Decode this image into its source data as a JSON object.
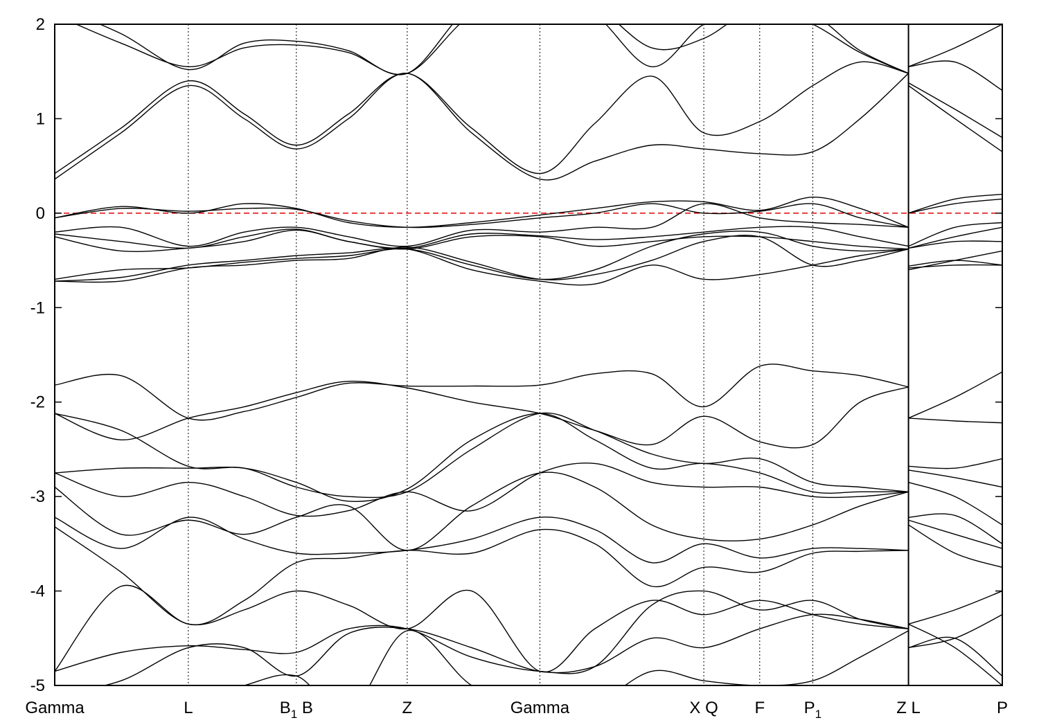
{
  "chart_data": {
    "type": "line",
    "title": "",
    "xlabel": "",
    "ylabel": "",
    "xlim": [
      0,
      10
    ],
    "ylim": [
      -5,
      2
    ],
    "yticks": [
      2,
      1,
      0,
      -1,
      -2,
      -3,
      -4,
      -5
    ],
    "ytick_labels": [
      "2",
      "1",
      "0",
      "-1",
      "-2",
      "-3",
      "-4",
      "-5"
    ],
    "grid": "vertical dotted lines at high-symmetry points",
    "fermi_level": {
      "value": 0,
      "color": "#e00000",
      "style": "dashed"
    },
    "band_color": "#000000",
    "kpoints": [
      {
        "k": 0,
        "label": "Gamma",
        "sub": ""
      },
      {
        "k": 1.41,
        "label": "L",
        "sub": ""
      },
      {
        "k": 2.55,
        "label": "B",
        "sub": "1",
        "after": " B"
      },
      {
        "k": 3.72,
        "label": "Z",
        "sub": ""
      },
      {
        "k": 5.12,
        "label": "Gamma",
        "sub": ""
      },
      {
        "k": 6.85,
        "label": "X Q",
        "sub": ""
      },
      {
        "k": 7.44,
        "label": "F",
        "sub": ""
      },
      {
        "k": 8.0,
        "label": "P",
        "sub": "1"
      },
      {
        "k": 9.01,
        "label": "Z L",
        "sub": ""
      },
      {
        "k": 10,
        "label": "P",
        "sub": ""
      }
    ],
    "segments": [
      {
        "k": [
          0,
          0.7,
          1.41,
          2.0,
          2.55,
          3.1,
          3.72,
          4.4,
          5.12,
          5.7,
          6.3,
          6.85,
          7.44,
          8.0,
          8.5,
          9.01
        ],
        "bands": [
          [
            0.36,
            0.85,
            1.35,
            1.0,
            0.68,
            1.0,
            1.48,
            0.85,
            0.36,
            0.55,
            0.72,
            0.68,
            0.63,
            0.65,
            1.0,
            1.48
          ],
          [
            0.42,
            0.9,
            1.4,
            1.05,
            0.72,
            1.05,
            1.48,
            0.9,
            0.42,
            0.95,
            1.45,
            0.85,
            0.97,
            1.35,
            1.6,
            1.48
          ],
          [
            2.1,
            1.8,
            1.55,
            1.75,
            1.78,
            1.7,
            1.48,
            2.1,
            2.3,
            2.1,
            1.55,
            2.0,
            2.2,
            2.0,
            1.7,
            1.48
          ],
          [
            2.2,
            1.9,
            1.52,
            1.8,
            1.82,
            1.72,
            1.48,
            2.2,
            2.4,
            2.2,
            1.75,
            1.85,
            2.2,
            2.1,
            1.72,
            1.48
          ],
          [
            -0.05,
            0.07,
            0.0,
            0.1,
            0.05,
            -0.1,
            -0.15,
            -0.1,
            -0.02,
            0.05,
            0.12,
            0.12,
            0.03,
            0.17,
            0.05,
            -0.15
          ],
          [
            -0.05,
            0.05,
            0.02,
            0.05,
            0.04,
            -0.08,
            -0.15,
            -0.12,
            -0.05,
            0.0,
            0.1,
            0.0,
            0.02,
            0.1,
            -0.05,
            -0.15
          ],
          [
            -0.2,
            -0.15,
            -0.35,
            -0.2,
            -0.15,
            -0.25,
            -0.35,
            -0.18,
            -0.2,
            -0.15,
            -0.15,
            0.1,
            -0.05,
            -0.1,
            -0.12,
            -0.15
          ],
          [
            -0.22,
            -0.3,
            -0.37,
            -0.25,
            -0.17,
            -0.3,
            -0.37,
            -0.22,
            -0.24,
            -0.28,
            -0.25,
            -0.2,
            -0.15,
            -0.15,
            -0.25,
            -0.35
          ],
          [
            -0.25,
            -0.4,
            -0.37,
            -0.3,
            -0.18,
            -0.3,
            -0.38,
            -0.25,
            -0.25,
            -0.35,
            -0.3,
            -0.25,
            -0.25,
            -0.3,
            -0.35,
            -0.38
          ],
          [
            -0.7,
            -0.6,
            -0.58,
            -0.52,
            -0.48,
            -0.45,
            -0.38,
            -0.55,
            -0.7,
            -0.6,
            -0.35,
            -0.22,
            -0.2,
            -0.35,
            -0.4,
            -0.38
          ],
          [
            -0.72,
            -0.68,
            -0.55,
            -0.5,
            -0.45,
            -0.42,
            -0.38,
            -0.6,
            -0.72,
            -0.75,
            -0.55,
            -0.7,
            -0.65,
            -0.55,
            -0.45,
            -0.38
          ],
          [
            -0.72,
            -0.72,
            -0.58,
            -0.55,
            -0.5,
            -0.48,
            -0.36,
            -0.52,
            -0.7,
            -0.65,
            -0.5,
            -0.3,
            -0.25,
            -0.55,
            -0.5,
            -0.38
          ],
          [
            -1.82,
            -1.72,
            -2.17,
            -2.1,
            -1.95,
            -1.8,
            -1.83,
            -1.83,
            -1.82,
            -1.7,
            -1.7,
            -2.05,
            -1.62,
            -1.67,
            -1.72,
            -1.84
          ],
          [
            -2.12,
            -2.4,
            -2.17,
            -2.05,
            -1.9,
            -1.78,
            -1.85,
            -2.0,
            -2.12,
            -2.3,
            -2.45,
            -2.15,
            -2.42,
            -2.45,
            -2.0,
            -1.84
          ],
          [
            -2.12,
            -2.3,
            -2.68,
            -2.7,
            -2.9,
            -3.0,
            -2.95,
            -2.5,
            -2.12,
            -2.3,
            -2.55,
            -2.65,
            -2.6,
            -2.85,
            -2.9,
            -2.95
          ],
          [
            -2.75,
            -2.7,
            -2.7,
            -2.7,
            -2.85,
            -3.05,
            -2.92,
            -2.4,
            -2.12,
            -2.4,
            -2.7,
            -2.65,
            -2.75,
            -2.95,
            -2.95,
            -2.95
          ],
          [
            -2.75,
            -3.0,
            -2.85,
            -3.0,
            -3.2,
            -3.15,
            -2.95,
            -3.15,
            -2.75,
            -2.65,
            -2.85,
            -2.9,
            -2.9,
            -3.0,
            -3.0,
            -2.95
          ],
          [
            -2.9,
            -3.4,
            -3.25,
            -3.4,
            -3.22,
            -3.1,
            -3.57,
            -3.1,
            -2.75,
            -2.9,
            -3.3,
            -3.45,
            -3.45,
            -3.3,
            -3.1,
            -2.95
          ],
          [
            -3.22,
            -3.55,
            -3.22,
            -3.45,
            -3.6,
            -3.6,
            -3.57,
            -3.45,
            -3.22,
            -3.35,
            -3.7,
            -3.5,
            -3.65,
            -3.55,
            -3.55,
            -3.57
          ],
          [
            -3.32,
            -3.8,
            -4.35,
            -4.1,
            -3.7,
            -3.65,
            -3.57,
            -3.6,
            -3.35,
            -3.5,
            -3.95,
            -3.75,
            -3.8,
            -3.6,
            -3.58,
            -3.57
          ],
          [
            -4.85,
            -3.95,
            -4.35,
            -4.2,
            -4.0,
            -4.15,
            -4.4,
            -4.0,
            -4.85,
            -4.4,
            -4.1,
            -4.25,
            -4.1,
            -4.25,
            -4.35,
            -4.4
          ],
          [
            -4.85,
            -4.65,
            -4.58,
            -4.62,
            -4.65,
            -4.4,
            -4.4,
            -4.7,
            -4.85,
            -4.8,
            -4.15,
            -4.0,
            -4.2,
            -4.1,
            -4.3,
            -4.4
          ],
          [
            -5.1,
            -4.95,
            -4.6,
            -4.6,
            -4.9,
            -4.45,
            -4.4,
            -4.6,
            -4.85,
            -4.8,
            -4.5,
            -4.6,
            -4.4,
            -4.25,
            -4.3,
            -4.4
          ],
          [
            -5.2,
            -5.05,
            -5.2,
            -5.0,
            -4.9,
            -5.3,
            -4.42,
            -5.0,
            -5.3,
            -5.2,
            -4.85,
            -4.95,
            -5.0,
            -4.95,
            -4.7,
            -4.42
          ]
        ]
      },
      {
        "k": [
          9.01,
          9.5,
          10
        ],
        "bands": [
          [
            1.35,
            1.0,
            0.65
          ],
          [
            1.38,
            1.1,
            0.8
          ],
          [
            1.55,
            1.6,
            1.3
          ],
          [
            1.55,
            1.75,
            2.0
          ],
          [
            0.0,
            0.15,
            0.2
          ],
          [
            0.0,
            0.1,
            0.15
          ],
          [
            -0.35,
            -0.15,
            -0.1
          ],
          [
            -0.37,
            -0.25,
            -0.15
          ],
          [
            -0.37,
            -0.3,
            -0.3
          ],
          [
            -0.56,
            -0.5,
            -0.55
          ],
          [
            -0.6,
            -0.5,
            -0.4
          ],
          [
            -0.58,
            -0.55,
            -0.55
          ],
          [
            -2.17,
            -1.95,
            -1.68
          ],
          [
            -2.17,
            -2.2,
            -2.22
          ],
          [
            -2.68,
            -2.7,
            -2.6
          ],
          [
            -2.72,
            -2.8,
            -2.9
          ],
          [
            -2.85,
            -3.0,
            -3.3
          ],
          [
            -3.22,
            -3.2,
            -3.5
          ],
          [
            -3.25,
            -3.4,
            -3.55
          ],
          [
            -3.3,
            -3.6,
            -3.75
          ],
          [
            -4.35,
            -4.2,
            -4.0
          ],
          [
            -4.6,
            -4.5,
            -4.25
          ],
          [
            -4.6,
            -4.5,
            -4.9
          ],
          [
            -4.35,
            -4.6,
            -5.0
          ]
        ]
      }
    ]
  }
}
